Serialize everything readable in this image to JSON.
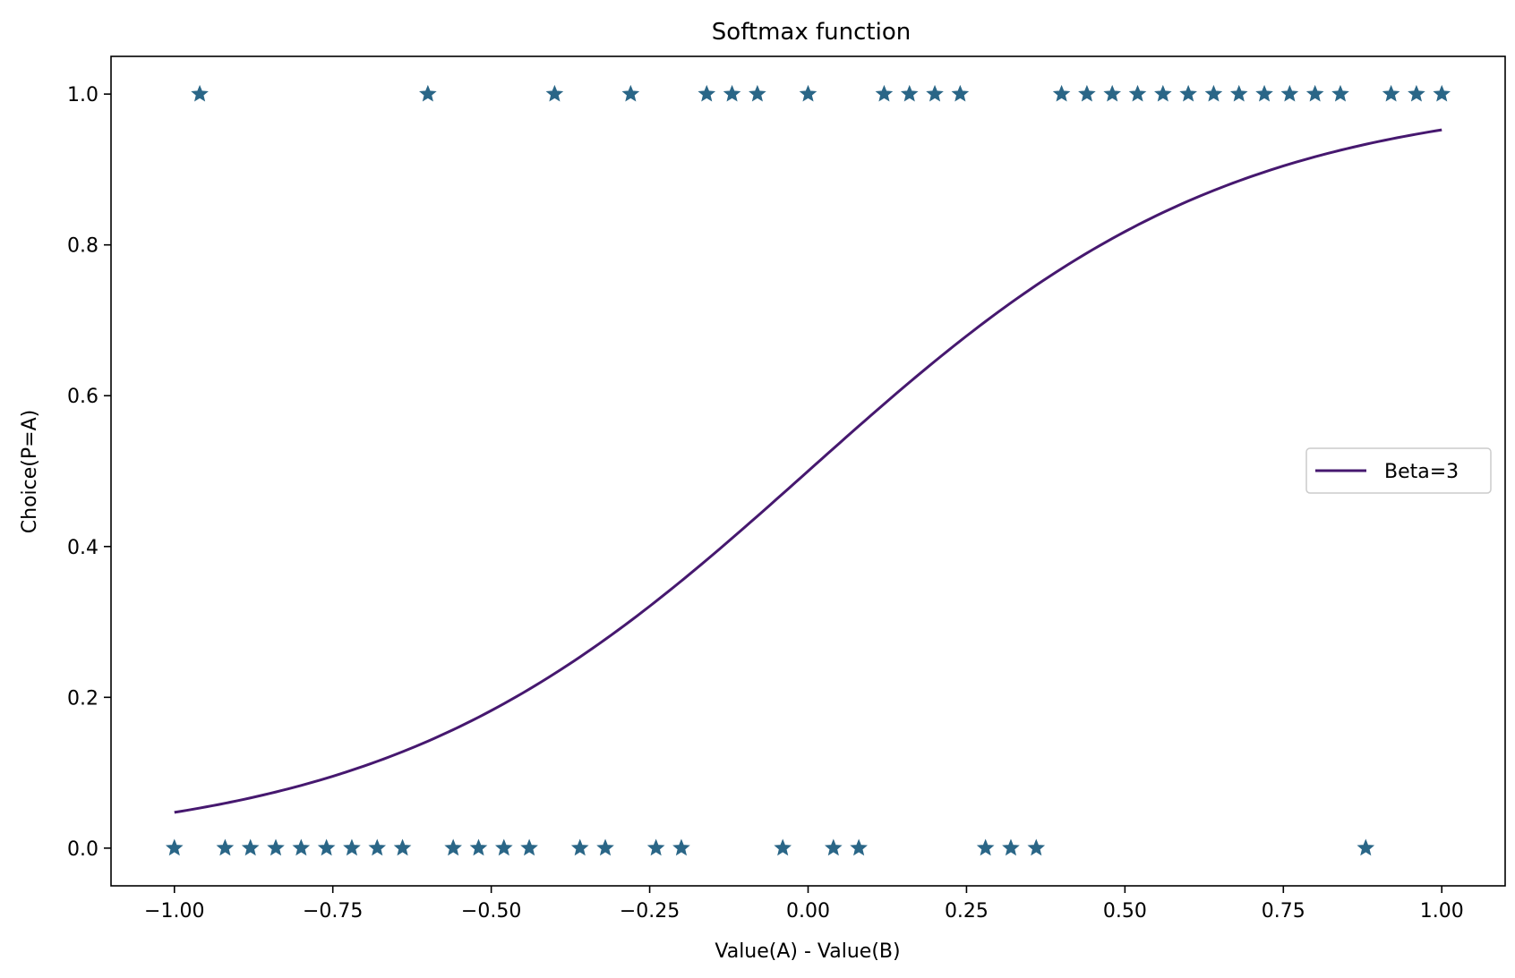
{
  "chart_data": {
    "type": "scatter",
    "title": "Softmax function",
    "xlabel": "Value(A) - Value(B)",
    "ylabel": "Choice(P=A)",
    "xlim": [
      -1.1,
      1.1
    ],
    "ylim": [
      -0.05,
      1.05
    ],
    "xticks": [
      -1.0,
      -0.75,
      -0.5,
      -0.25,
      0.0,
      0.25,
      0.5,
      0.75,
      1.0
    ],
    "xtick_labels": [
      "−1.00",
      "−0.75",
      "−0.50",
      "−0.25",
      "0.00",
      "0.25",
      "0.50",
      "0.75",
      "1.00"
    ],
    "yticks": [
      0.0,
      0.2,
      0.4,
      0.6,
      0.8,
      1.0
    ],
    "ytick_labels": [
      "0.0",
      "0.2",
      "0.4",
      "0.6",
      "0.8",
      "1.0"
    ],
    "grid": false,
    "legend_position": "center-right",
    "series": [
      {
        "name": "Beta=3",
        "kind": "line",
        "function": "1 / (1 + exp(-3x))",
        "x_range": [
          -1.0,
          1.0
        ],
        "color": "#46186f"
      },
      {
        "kind": "scatter",
        "marker": "star",
        "color": "#2a6687",
        "points": [
          [
            -1.0,
            0
          ],
          [
            -0.96,
            1
          ],
          [
            -0.92,
            0
          ],
          [
            -0.88,
            0
          ],
          [
            -0.84,
            0
          ],
          [
            -0.8,
            0
          ],
          [
            -0.76,
            0
          ],
          [
            -0.72,
            0
          ],
          [
            -0.68,
            0
          ],
          [
            -0.64,
            0
          ],
          [
            -0.6,
            1
          ],
          [
            -0.56,
            0
          ],
          [
            -0.52,
            0
          ],
          [
            -0.48,
            0
          ],
          [
            -0.44,
            0
          ],
          [
            -0.4,
            1
          ],
          [
            -0.36,
            0
          ],
          [
            -0.32,
            0
          ],
          [
            -0.28,
            1
          ],
          [
            -0.24,
            0
          ],
          [
            -0.2,
            0
          ],
          [
            -0.16,
            1
          ],
          [
            -0.12,
            1
          ],
          [
            -0.08,
            1
          ],
          [
            -0.04,
            0
          ],
          [
            0.0,
            1
          ],
          [
            0.04,
            0
          ],
          [
            0.08,
            0
          ],
          [
            0.12,
            1
          ],
          [
            0.16,
            1
          ],
          [
            0.2,
            1
          ],
          [
            0.24,
            1
          ],
          [
            0.28,
            0
          ],
          [
            0.32,
            0
          ],
          [
            0.36,
            0
          ],
          [
            0.4,
            1
          ],
          [
            0.44,
            1
          ],
          [
            0.48,
            1
          ],
          [
            0.52,
            1
          ],
          [
            0.56,
            1
          ],
          [
            0.6,
            1
          ],
          [
            0.64,
            1
          ],
          [
            0.68,
            1
          ],
          [
            0.72,
            1
          ],
          [
            0.76,
            1
          ],
          [
            0.8,
            1
          ],
          [
            0.84,
            1
          ],
          [
            0.88,
            0
          ],
          [
            0.92,
            1
          ],
          [
            0.96,
            1
          ],
          [
            1.0,
            1
          ]
        ]
      }
    ]
  }
}
